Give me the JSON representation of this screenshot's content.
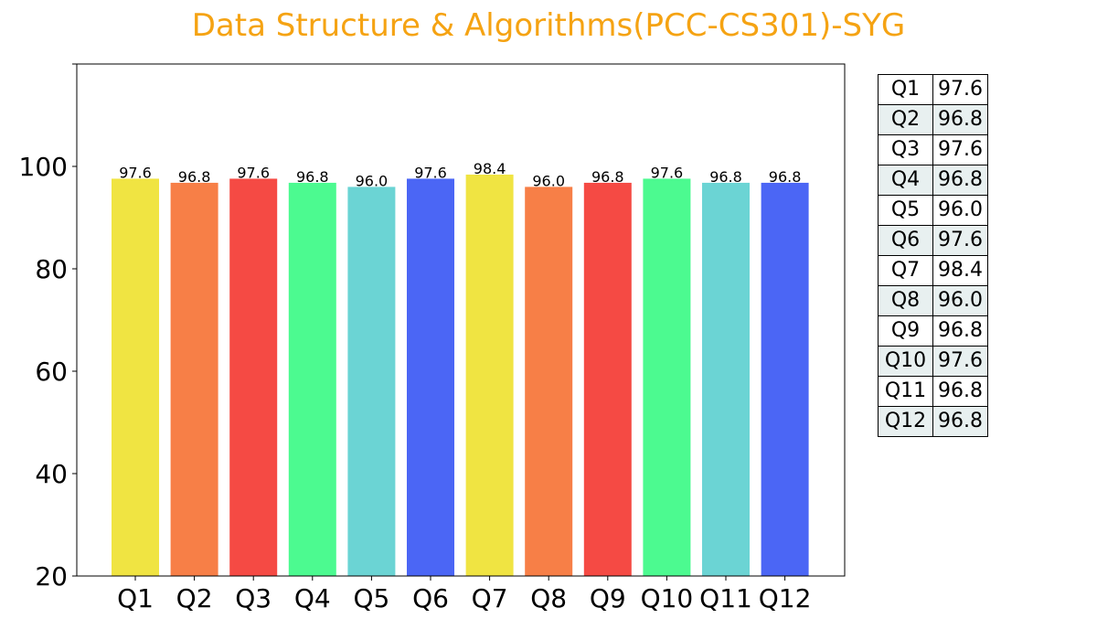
{
  "chart_data": {
    "type": "bar",
    "title": "Data Structure & Algorithms(PCC-CS301)-SYG",
    "xlabel": "",
    "ylabel": "",
    "categories": [
      "Q1",
      "Q2",
      "Q3",
      "Q4",
      "Q5",
      "Q6",
      "Q7",
      "Q8",
      "Q9",
      "Q10",
      "Q11",
      "Q12"
    ],
    "values": [
      97.6,
      96.8,
      97.6,
      96.8,
      96.0,
      97.6,
      98.4,
      96.0,
      96.8,
      97.6,
      96.8,
      96.8
    ],
    "value_labels": [
      "97.6",
      "96.8",
      "97.6",
      "96.8",
      "96.0",
      "97.6",
      "98.4",
      "96.0",
      "96.8",
      "97.6",
      "96.8",
      "96.8"
    ],
    "bar_colors": [
      "#f0e442",
      "#f77f47",
      "#f54a44",
      "#4cfa90",
      "#6bd4d4",
      "#4b66f5",
      "#f0e442",
      "#f77f47",
      "#f54a44",
      "#4cfa90",
      "#6bd4d4",
      "#4b66f5"
    ],
    "ylim": [
      20,
      120
    ],
    "yticks": [
      20,
      40,
      60,
      80,
      100,
      120
    ],
    "ytick_labels": [
      "20",
      "40",
      "60",
      "80",
      "100",
      ""
    ],
    "grid": false,
    "title_color": "#f5a313"
  },
  "table": {
    "rows": [
      {
        "label": "Q1",
        "value": "97.6"
      },
      {
        "label": "Q2",
        "value": "96.8"
      },
      {
        "label": "Q3",
        "value": "97.6"
      },
      {
        "label": "Q4",
        "value": "96.8"
      },
      {
        "label": "Q5",
        "value": "96.0"
      },
      {
        "label": "Q6",
        "value": "97.6"
      },
      {
        "label": "Q7",
        "value": "98.4"
      },
      {
        "label": "Q8",
        "value": "96.0"
      },
      {
        "label": "Q9",
        "value": "96.8"
      },
      {
        "label": "Q10",
        "value": "97.6"
      },
      {
        "label": "Q11",
        "value": "96.8"
      },
      {
        "label": "Q12",
        "value": "96.8"
      }
    ]
  }
}
